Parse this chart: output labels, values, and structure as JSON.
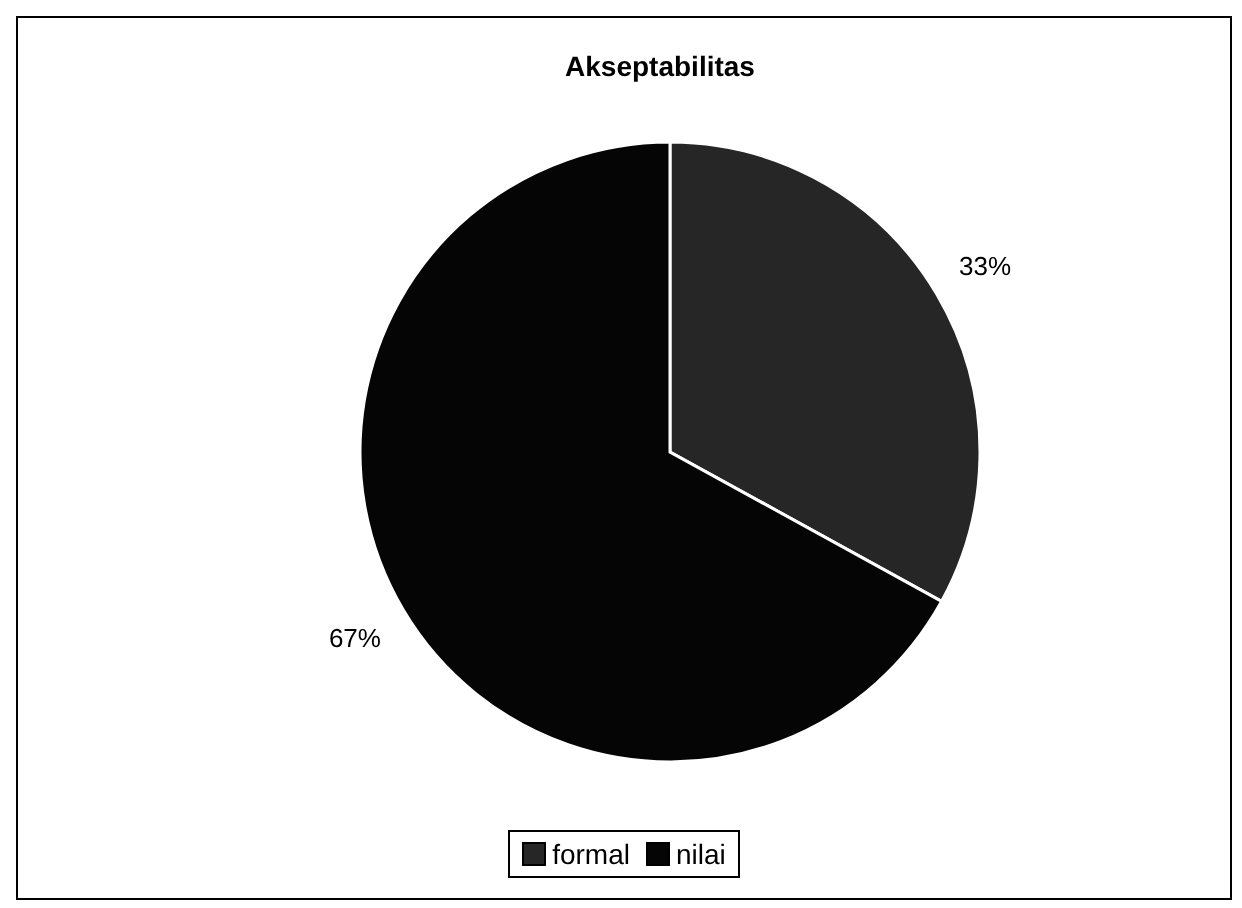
{
  "chart_data": {
    "type": "pie",
    "title": "Akseptabilitas",
    "categories": [
      "formal",
      "nilai"
    ],
    "values": [
      33,
      67
    ],
    "colors": [
      "#262626",
      "#050505"
    ],
    "value_labels": [
      "33%",
      "67%"
    ],
    "legend": "bottom"
  }
}
